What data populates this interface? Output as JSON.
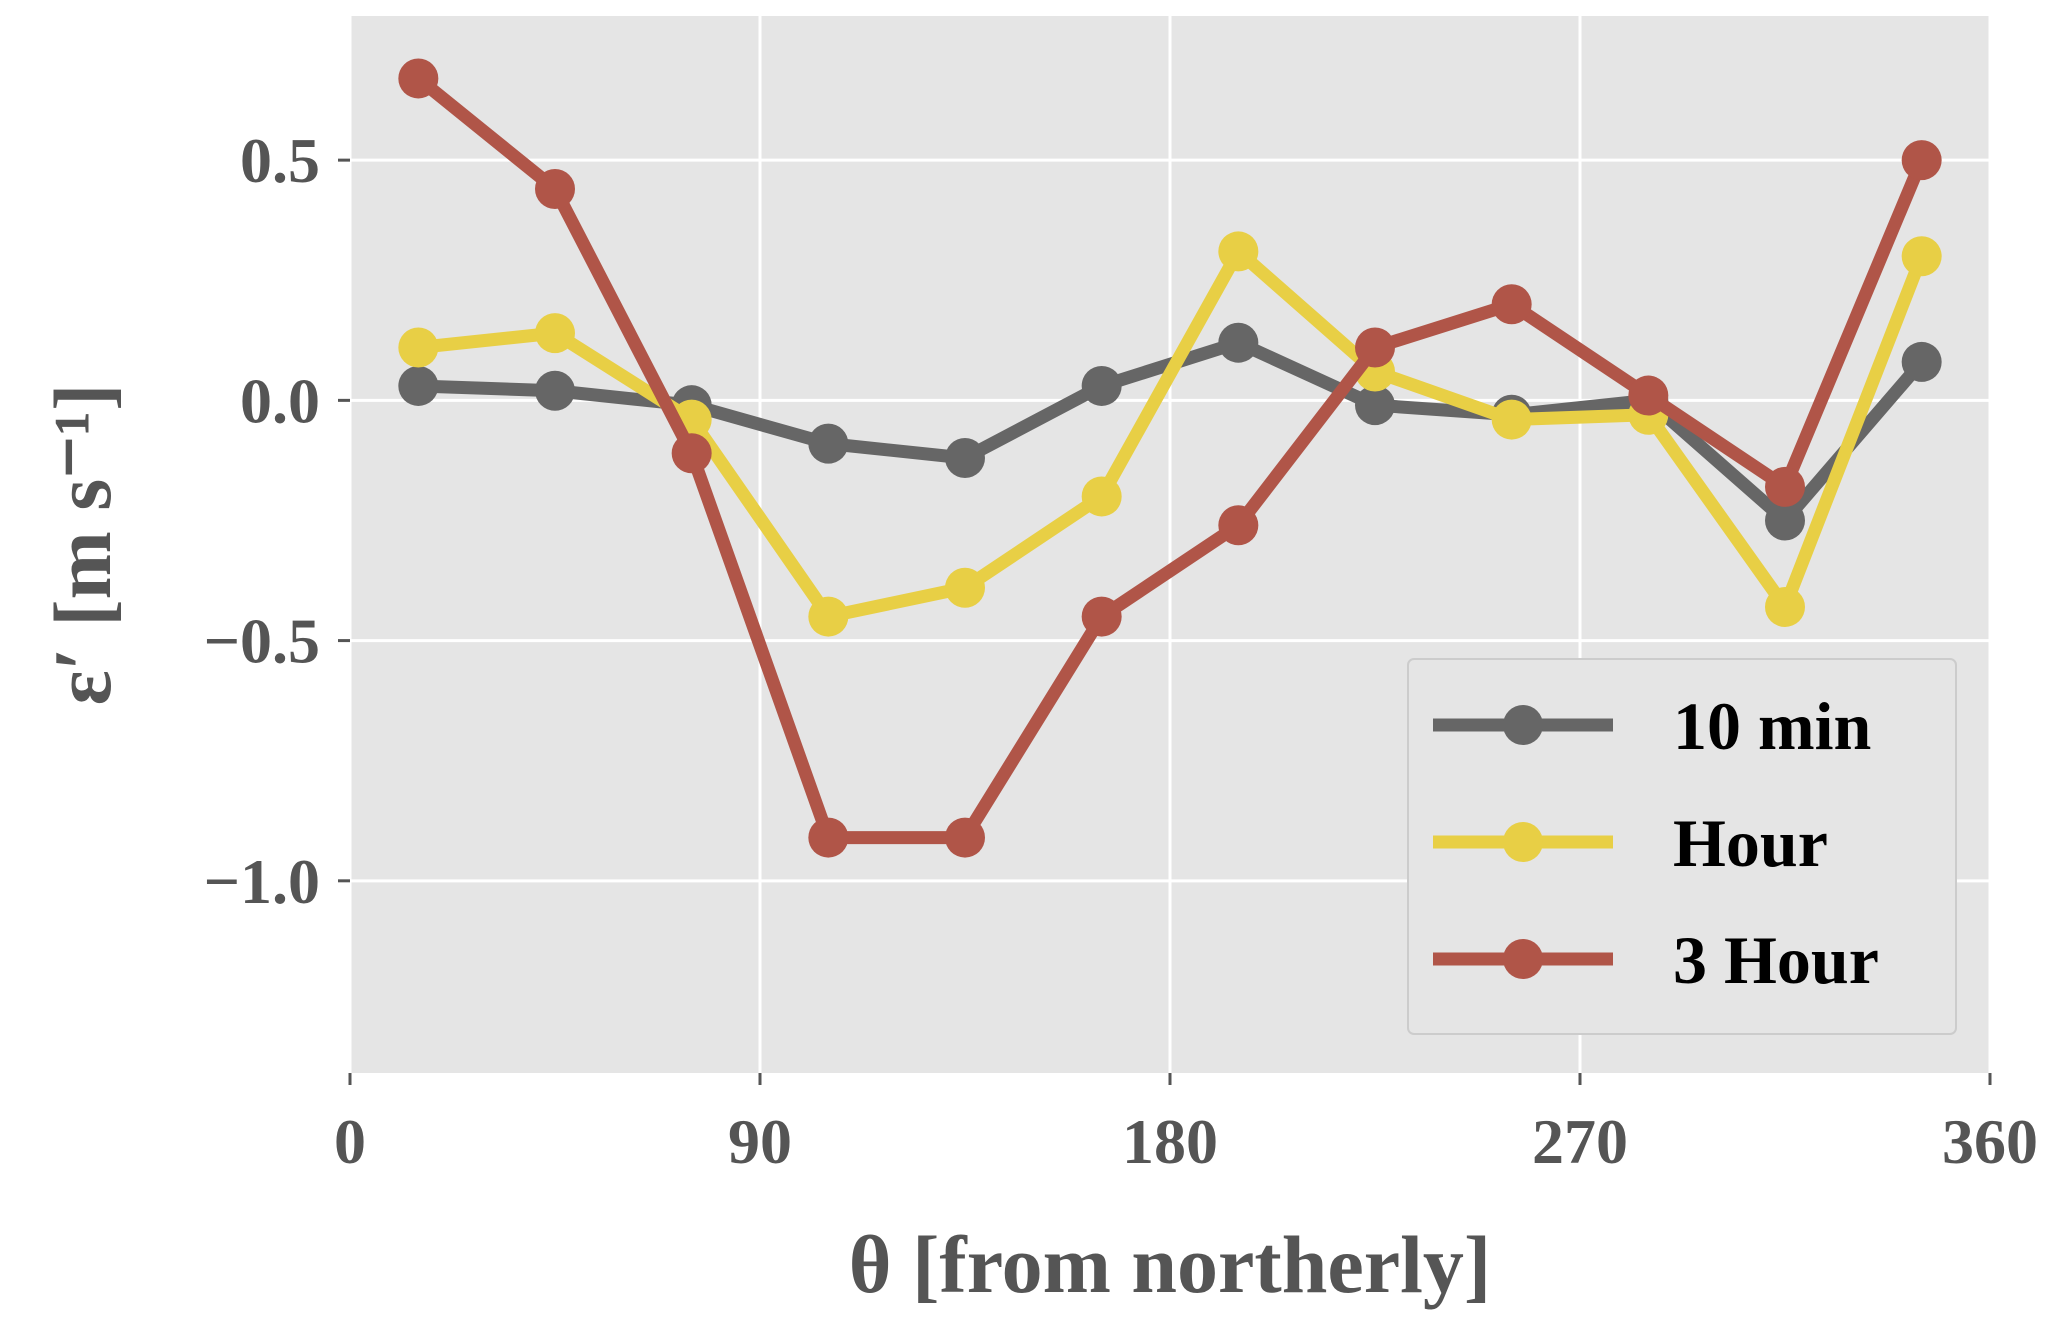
{
  "chart_data": {
    "type": "line",
    "xlabel": "θ [from northerly]",
    "ylabel": "ε′ [m s⁻¹]",
    "xlim": [
      0,
      360
    ],
    "ylim": [
      -1.4,
      0.8
    ],
    "xticks": [
      0,
      90,
      180,
      270,
      360
    ],
    "xtick_labels": [
      "0",
      "90",
      "180",
      "270",
      "360"
    ],
    "yticks": [
      0.5,
      0.0,
      -0.5,
      -1.0
    ],
    "ytick_labels": [
      "0.5",
      "0.0",
      "−0.5",
      "−1.0"
    ],
    "grid": true,
    "legend_position": "lower-right",
    "x": [
      15,
      45,
      75,
      105,
      135,
      165,
      195,
      225,
      255,
      285,
      315,
      345
    ],
    "series": [
      {
        "name": "10 min",
        "color": "#666666",
        "values": [
          0.03,
          0.02,
          -0.01,
          -0.09,
          -0.12,
          0.03,
          0.12,
          -0.01,
          -0.03,
          0.0,
          -0.25,
          0.08
        ]
      },
      {
        "name": "Hour",
        "color": "#e8cf45",
        "values": [
          0.11,
          0.14,
          -0.04,
          -0.45,
          -0.39,
          -0.2,
          0.31,
          0.06,
          -0.04,
          -0.03,
          -0.43,
          0.3
        ]
      },
      {
        "name": "3 Hour",
        "color": "#b05548",
        "values": [
          0.67,
          0.44,
          -0.11,
          -0.91,
          -0.91,
          -0.45,
          -0.26,
          0.11,
          0.2,
          0.01,
          -0.18,
          0.5
        ]
      }
    ]
  }
}
